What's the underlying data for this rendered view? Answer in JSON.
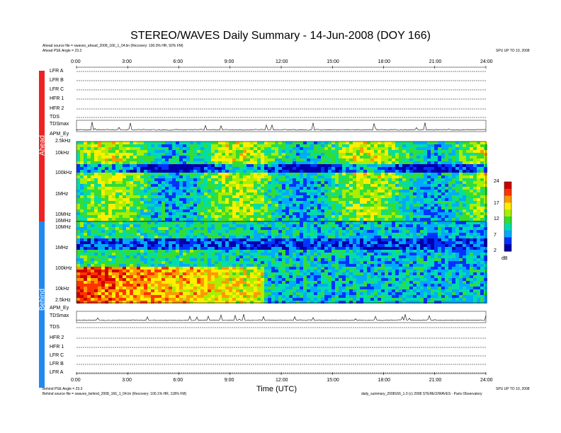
{
  "title": "STEREO/WAVES Daily Summary - 14-Jun-2008 (DOY 166)",
  "header": {
    "ahead_source": "Ahead source file = swaves_ahead_2008_166_1_04.lin (Recovery: 100.0% HR, 92% FM)",
    "ahead_angle": "Ahead PSE Angle = 23.3",
    "top_right": "SPU UP TO 10, 2008"
  },
  "footer": {
    "behind_angle": "Behind PSE Angle = 23.3",
    "behind_source": "Behind source file = swaves_behind_2008_166_1_04.lin (Recovery: 100.1% HR, 118% FM)",
    "right_1": "SPU UP TO 10, 2008",
    "right_2": "daily_summary_2008166_1.0 (c) 2008 STEREO/WAVES - Paris Observatory"
  },
  "labels": {
    "ahead": "Ahead",
    "behind": "Behind",
    "xlabel": "Time (UTC)",
    "colorbar_unit": "dB"
  },
  "ahead_rows": [
    "LFR A",
    "LFR B",
    "LFR C",
    "HFR 1",
    "HFR 2",
    "TDS",
    "TDSmax",
    "APM_Ey"
  ],
  "behind_rows": [
    "APM_Ey",
    "TDSmax",
    "TDS",
    "HFR 2",
    "HFR 1",
    "LFR C",
    "LFR B",
    "LFR A"
  ],
  "colors": {
    "ahead_band": "#ee2222",
    "behind_band": "#2288ee"
  },
  "chart_data": {
    "type": "heatmap",
    "x_ticks": [
      "0:00",
      "3:00",
      "6:00",
      "9:00",
      "12:00",
      "15:00",
      "18:00",
      "21:00",
      "24:00"
    ],
    "xlim": [
      0,
      24
    ],
    "ahead_freq_ticks": [
      "2.5kHz",
      "10kHz",
      "100kHz",
      "1MHz",
      "10MHz",
      "16MHz"
    ],
    "behind_freq_ticks": [
      "10MHz",
      "1MHz",
      "100kHz",
      "10kHz",
      "2.5kHz"
    ],
    "colorbar_ticks": [
      "24",
      "17",
      "12",
      "7",
      "2"
    ],
    "colorbar_range": [
      2,
      24
    ],
    "colormap": [
      "#0000aa",
      "#0033ff",
      "#00aaff",
      "#00ddaa",
      "#33dd33",
      "#aaee00",
      "#ffee00",
      "#ff9900",
      "#ff3300",
      "#cc0000"
    ]
  }
}
